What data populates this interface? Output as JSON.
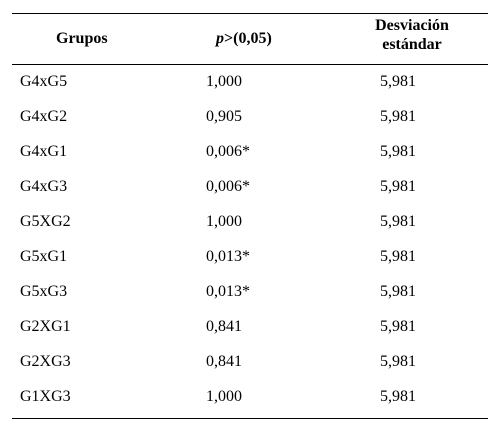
{
  "table": {
    "headers": {
      "grupos": "Grupos",
      "p_italic": "p",
      "p_rest": ">(0,05)",
      "desv_line1": "Desviación",
      "desv_line2": "estándar"
    },
    "rows": [
      {
        "grupo": "G4xG5",
        "p": "1,000",
        "desv": "5,981"
      },
      {
        "grupo": "G4xG2",
        "p": "0,905",
        "desv": "5,981"
      },
      {
        "grupo": "G4xG1",
        "p": "0,006*",
        "desv": "5,981"
      },
      {
        "grupo": "G4xG3",
        "p": "0,006*",
        "desv": "5,981"
      },
      {
        "grupo": "G5XG2",
        "p": "1,000",
        "desv": "5,981"
      },
      {
        "grupo": "G5xG1",
        "p": "0,013*",
        "desv": "5,981"
      },
      {
        "grupo": "G5xG3",
        "p": "0,013*",
        "desv": "5,981"
      },
      {
        "grupo": "G2XG1",
        "p": "0,841",
        "desv": "5,981"
      },
      {
        "grupo": "G2XG3",
        "p": "0,841",
        "desv": "5,981"
      },
      {
        "grupo": "G1XG3",
        "p": "1,000",
        "desv": "5,981"
      }
    ]
  }
}
